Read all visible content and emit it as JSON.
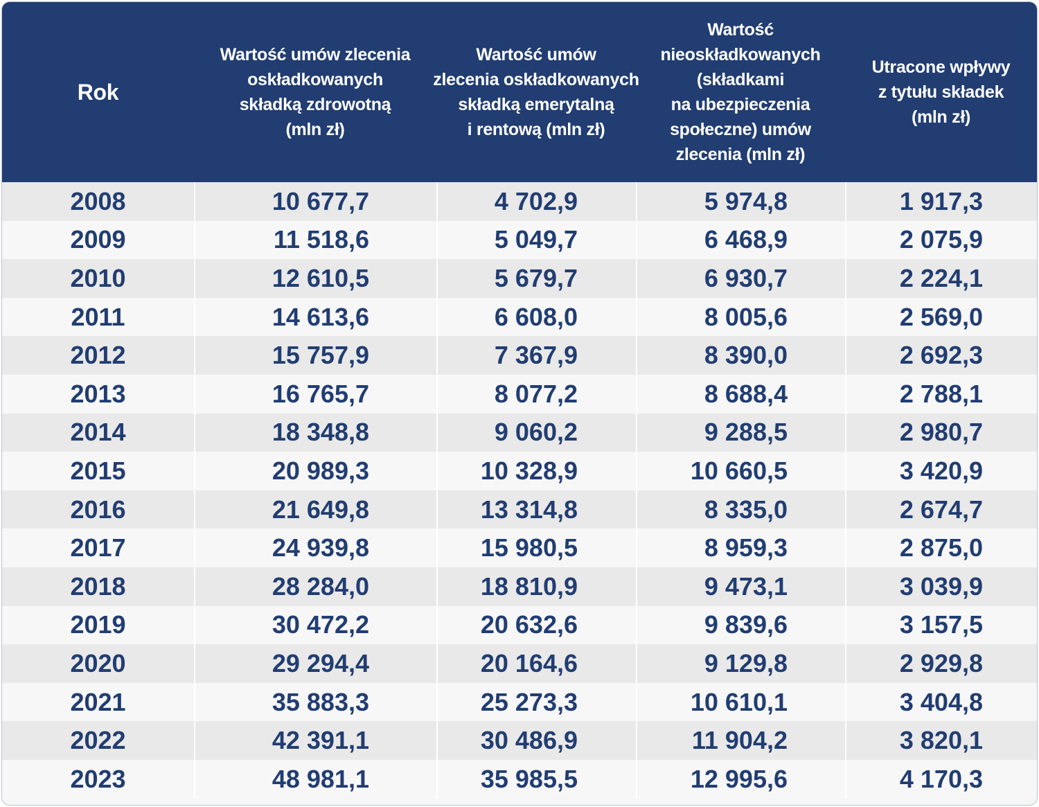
{
  "table": {
    "header": [
      [
        "Rok"
      ],
      [
        "Wartość umów zlecenia",
        "oskładkowanych",
        "składką zdrowotną",
        "(mln zł)"
      ],
      [
        "Wartość umów",
        "zlecenia oskładkowanych",
        "składką emerytalną",
        "i rentową (mln zł)"
      ],
      [
        "Wartość",
        "nieoskładkowanych",
        "(składkami",
        "na ubezpieczenia",
        "społeczne) umów",
        "zlecenia (mln zł)"
      ],
      [
        "Utracone wpływy",
        "z tytułu składek",
        "(mln zł)"
      ]
    ],
    "rows": [
      [
        "2008",
        "10 677,7",
        "4 702,9",
        "5 974,8",
        "1 917,3"
      ],
      [
        "2009",
        "11 518,6",
        "5 049,7",
        "6 468,9",
        "2 075,9"
      ],
      [
        "2010",
        "12 610,5",
        "5 679,7",
        "6 930,7",
        "2 224,1"
      ],
      [
        "2011",
        "14 613,6",
        "6 608,0",
        "8 005,6",
        "2 569,0"
      ],
      [
        "2012",
        "15 757,9",
        "7 367,9",
        "8 390,0",
        "2 692,3"
      ],
      [
        "2013",
        "16 765,7",
        "8 077,2",
        "8 688,4",
        "2 788,1"
      ],
      [
        "2014",
        "18 348,8",
        "9 060,2",
        "9 288,5",
        "2 980,7"
      ],
      [
        "2015",
        "20 989,3",
        "10 328,9",
        "10 660,5",
        "3 420,9"
      ],
      [
        "2016",
        "21 649,8",
        "13 314,8",
        "8 335,0",
        "2 674,7"
      ],
      [
        "2017",
        "24 939,8",
        "15 980,5",
        "8 959,3",
        "2 875,0"
      ],
      [
        "2018",
        "28 284,0",
        "18 810,9",
        "9 473,1",
        "3 039,9"
      ],
      [
        "2019",
        "30 472,2",
        "20 632,6",
        "9 839,6",
        "3 157,5"
      ],
      [
        "2020",
        "29 294,4",
        "20 164,6",
        "9 129,8",
        "2 929,8"
      ],
      [
        "2021",
        "35 883,3",
        "25 273,3",
        "10 610,1",
        "3 404,8"
      ],
      [
        "2022",
        "42 391,1",
        "30 486,9",
        "11 904,2",
        "3 820,1"
      ],
      [
        "2023",
        "48 981,1",
        "35 985,5",
        "12 995,6",
        "4 170,3"
      ]
    ]
  }
}
